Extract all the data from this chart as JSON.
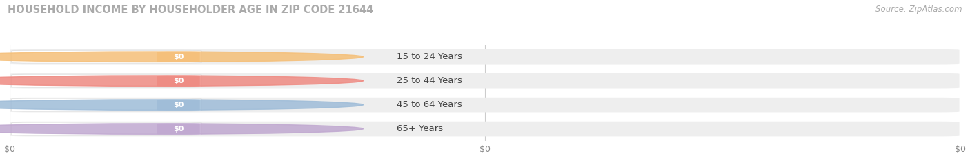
{
  "title": "HOUSEHOLD INCOME BY HOUSEHOLDER AGE IN ZIP CODE 21644",
  "source": "Source: ZipAtlas.com",
  "categories": [
    "15 to 24 Years",
    "25 to 44 Years",
    "45 to 64 Years",
    "65+ Years"
  ],
  "values": [
    0,
    0,
    0,
    0
  ],
  "bar_colors": [
    "#f5bf78",
    "#ee8a82",
    "#9ebcd8",
    "#c0a8d0"
  ],
  "bar_bg_color": "#eeeeee",
  "background_color": "#ffffff",
  "title_color": "#aaaaaa",
  "source_color": "#aaaaaa",
  "tick_label_color": "#888888",
  "figsize": [
    14.06,
    2.33
  ],
  "dpi": 100
}
